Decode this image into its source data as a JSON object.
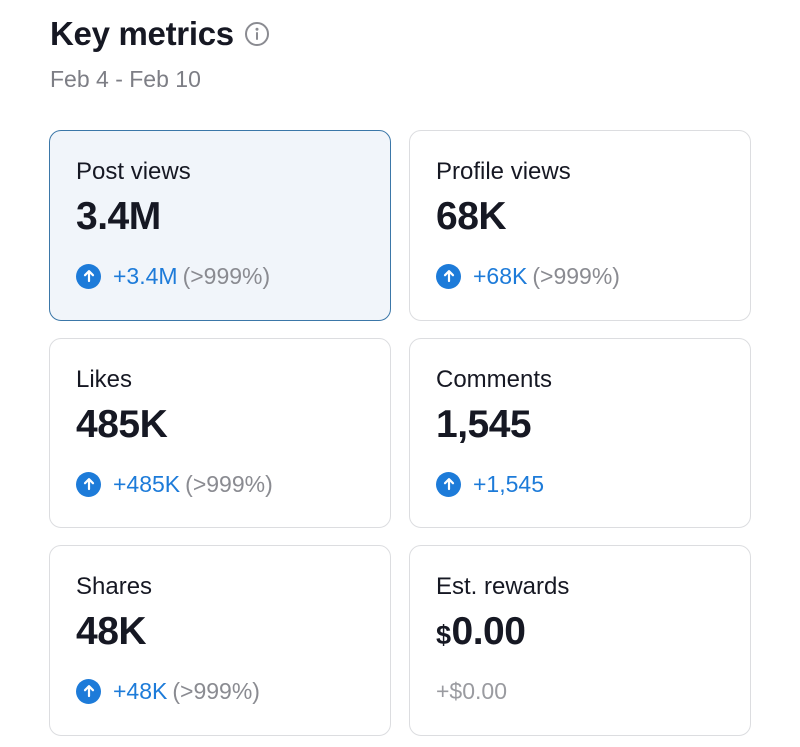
{
  "header": {
    "title": "Key metrics",
    "date_range": "Feb 4 - Feb 10"
  },
  "colors": {
    "accent_blue": "#1d7bd9",
    "selected_border": "#3b77a8",
    "selected_background": "#f1f5fa",
    "card_border": "#dcdde0",
    "muted_text": "#8a8b91"
  },
  "icons": {
    "info": "info-icon",
    "increase": "arrow-up-circle-icon"
  },
  "metrics": [
    {
      "label": "Post views",
      "value": "3.4M",
      "delta": "+3.4M",
      "percent": "(>999%)",
      "selected": true
    },
    {
      "label": "Profile views",
      "value": "68K",
      "delta": "+68K",
      "percent": "(>999%)"
    },
    {
      "label": "Likes",
      "value": "485K",
      "delta": "+485K",
      "percent": "(>999%)"
    },
    {
      "label": "Comments",
      "value": "1,545",
      "delta": "+1,545"
    },
    {
      "label": "Shares",
      "value": "48K",
      "delta": "+48K",
      "percent": "(>999%)"
    },
    {
      "label": "Est. rewards",
      "currency": "$",
      "value": "0.00",
      "delta": "+$0.00"
    }
  ]
}
